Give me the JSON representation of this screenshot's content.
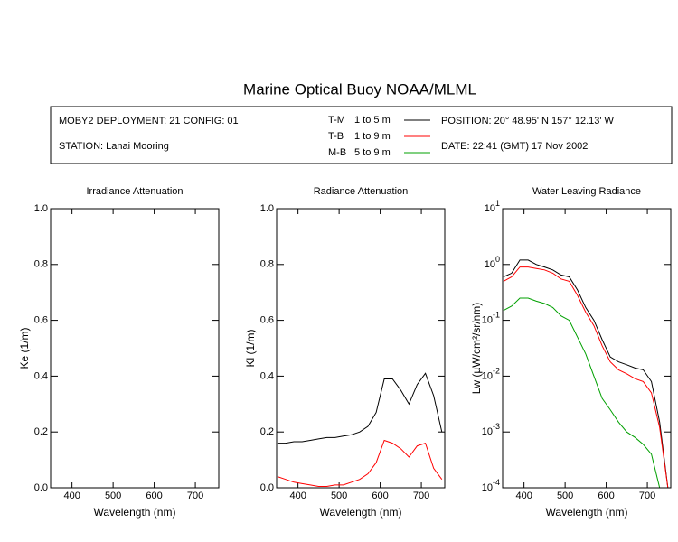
{
  "title": "Marine Optical Buoy NOAA/MLML",
  "header": {
    "deployment": "MOBY2 DEPLOYMENT: 21 CONFIG: 01",
    "station": "STATION: Lanai Mooring",
    "position": "POSITION: 20° 48.95' N   157° 12.13' W",
    "date": "DATE: 22:41 (GMT) 17 Nov 2002"
  },
  "chart_data": [
    {
      "type": "line",
      "title": "Irradiance Attenuation",
      "xlabel": "Wavelength (nm)",
      "ylabel": "Ke  (1/m)",
      "xlim": [
        348,
        757
      ],
      "xticks": [
        400,
        500,
        600,
        700
      ],
      "ylim": [
        0,
        1
      ],
      "yticks": [
        {
          "value": 0,
          "label": "0.0"
        },
        {
          "value": 0.2,
          "label": "0.2"
        },
        {
          "value": 0.4,
          "label": "0.4"
        },
        {
          "value": 0.6,
          "label": "0.6"
        },
        {
          "value": 0.8,
          "label": "0.8"
        },
        {
          "value": 1,
          "label": "1.0"
        }
      ],
      "x": [],
      "series": []
    },
    {
      "type": "line",
      "title": "Radiance Attenuation",
      "xlabel": "Wavelength (nm)",
      "ylabel": "Kl  (1/m)",
      "xlim": [
        348,
        757
      ],
      "xticks": [
        400,
        500,
        600,
        700
      ],
      "ylim": [
        0,
        1
      ],
      "yticks": [
        {
          "value": 0,
          "label": "0.0"
        },
        {
          "value": 0.2,
          "label": "0.2"
        },
        {
          "value": 0.4,
          "label": "0.4"
        },
        {
          "value": 0.6,
          "label": "0.6"
        },
        {
          "value": 0.8,
          "label": "0.8"
        },
        {
          "value": 1,
          "label": "1.0"
        }
      ],
      "x": [
        350,
        370,
        390,
        410,
        430,
        450,
        470,
        490,
        510,
        530,
        550,
        570,
        590,
        610,
        630,
        650,
        670,
        690,
        710,
        730,
        750
      ],
      "series": [
        {
          "name": "T-M",
          "color": "#000000",
          "values": [
            0.16,
            0.16,
            0.165,
            0.165,
            0.17,
            0.175,
            0.18,
            0.18,
            0.185,
            0.19,
            0.2,
            0.22,
            0.27,
            0.39,
            0.39,
            0.35,
            0.3,
            0.37,
            0.41,
            0.33,
            0.2
          ]
        },
        {
          "name": "T-B",
          "color": "#ff0000",
          "values": [
            0.04,
            0.03,
            0.02,
            0.015,
            0.01,
            0.005,
            0.005,
            0.01,
            0.01,
            0.02,
            0.03,
            0.05,
            0.09,
            0.17,
            0.16,
            0.14,
            0.11,
            0.15,
            0.16,
            0.07,
            0.03
          ]
        }
      ]
    },
    {
      "type": "line",
      "title": "Water Leaving Radiance",
      "xlabel": "Wavelength (nm)",
      "ylabel": "Lw  (µW/cm²/sr/nm)",
      "xlim": [
        348,
        757
      ],
      "xticks": [
        400,
        500,
        600,
        700
      ],
      "ylim": [
        0.0001,
        10
      ],
      "log": true,
      "yticks": [
        {
          "value": 10,
          "label": "10^1"
        },
        {
          "value": 1,
          "label": "10^0"
        },
        {
          "value": 0.1,
          "label": "10^-1"
        },
        {
          "value": 0.01,
          "label": "10^-2"
        },
        {
          "value": 0.001,
          "label": "10^-3"
        },
        {
          "value": 0.0001,
          "label": "10^-4"
        }
      ],
      "x": [
        350,
        370,
        390,
        410,
        430,
        450,
        470,
        490,
        510,
        530,
        550,
        570,
        590,
        610,
        630,
        650,
        670,
        690,
        710,
        730,
        750
      ],
      "series": [
        {
          "name": "T-M",
          "depth": "1 to 5  m",
          "color": "#000000",
          "values": [
            0.6,
            0.7,
            1.2,
            1.2,
            1.0,
            0.9,
            0.8,
            0.65,
            0.6,
            0.35,
            0.17,
            0.1,
            0.045,
            0.022,
            0.018,
            0.016,
            0.014,
            0.013,
            0.008,
            0.0015,
            0.0001
          ]
        },
        {
          "name": "T-B",
          "depth": "1 to 9  m",
          "color": "#ff0000",
          "values": [
            0.5,
            0.6,
            0.9,
            0.9,
            0.85,
            0.8,
            0.7,
            0.55,
            0.5,
            0.28,
            0.14,
            0.08,
            0.035,
            0.018,
            0.013,
            0.011,
            0.009,
            0.008,
            0.005,
            0.0012,
            0.0001
          ]
        },
        {
          "name": "M-B",
          "depth": "5 to 9  m",
          "color": "#00a000",
          "values": [
            0.15,
            0.18,
            0.25,
            0.25,
            0.22,
            0.2,
            0.17,
            0.12,
            0.1,
            0.05,
            0.025,
            0.01,
            0.004,
            0.0025,
            0.0015,
            0.001,
            0.0008,
            0.0006,
            0.0004,
            0.0001,
            null
          ]
        }
      ]
    }
  ]
}
